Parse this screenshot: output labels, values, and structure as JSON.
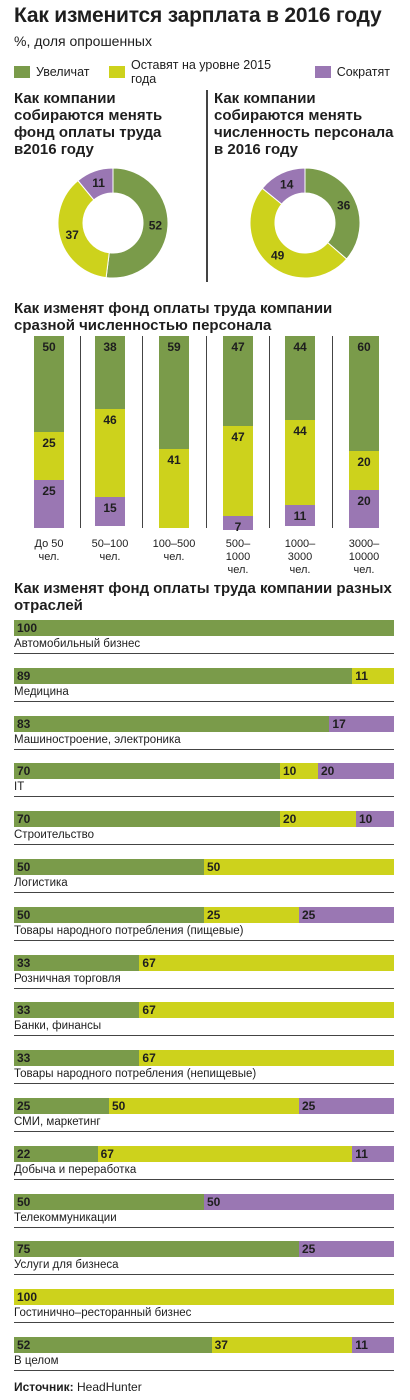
{
  "header": {
    "title": "Как изменится зарплата в 2016 году",
    "subtitle": "%, доля опрошенных"
  },
  "legend": [
    {
      "label": "Увеличат",
      "color": "#7a9b4a"
    },
    {
      "label": "Оставят на уровне 2015 года",
      "color": "#cdd21c"
    },
    {
      "label": "Сократят",
      "color": "#9a77b3"
    }
  ],
  "chart_data": [
    {
      "type": "pie",
      "title": "Как компании собираются менять фонд оплаты труда в2016 году",
      "title_lines": [
        "Как компании",
        "собираются менять",
        "фонд оплаты труда",
        "в2016 году"
      ],
      "categories": [
        "Увеличат",
        "Оставят на уровне 2015 года",
        "Сократят"
      ],
      "values": [
        52,
        37,
        11
      ],
      "colors": [
        "#7a9b4a",
        "#cdd21c",
        "#9a77b3"
      ]
    },
    {
      "type": "pie",
      "title": "Как компании собираются менять численность персонала в 2016 году",
      "title_lines": [
        "Как компании",
        "собираются менять",
        "численность персонала",
        "в 2016 году"
      ],
      "categories": [
        "Увеличат",
        "Оставят на уровне 2015 года",
        "Сократят"
      ],
      "values": [
        36,
        49,
        14
      ],
      "colors": [
        "#7a9b4a",
        "#cdd21c",
        "#9a77b3"
      ]
    },
    {
      "type": "bar",
      "stacked": true,
      "orientation": "vertical",
      "title": "Как изменят фонд оплаты труда компании сразной численностью персонала",
      "title_lines": [
        "Как изменят фонд оплаты труда компании",
        "сразной численностью персонала"
      ],
      "categories": [
        [
          "До 50",
          "чел."
        ],
        [
          "50–100",
          "чел."
        ],
        [
          "100–500",
          "чел."
        ],
        [
          "500–",
          "1000",
          "чел."
        ],
        [
          "1000–",
          "3000",
          "чел."
        ],
        [
          "3000–",
          "10000",
          "чел."
        ]
      ],
      "series": [
        {
          "name": "Увеличат",
          "values": [
            50,
            38,
            59,
            47,
            44,
            60
          ]
        },
        {
          "name": "Оставят на уровне 2015 года",
          "values": [
            25,
            46,
            41,
            47,
            44,
            20
          ]
        },
        {
          "name": "Сократят",
          "values": [
            25,
            15,
            0,
            7,
            11,
            20
          ]
        }
      ],
      "ylim": [
        0,
        100
      ]
    },
    {
      "type": "bar",
      "stacked": true,
      "orientation": "horizontal",
      "title": "Как изменят фонд оплаты труда компании разных отраслей",
      "title_lines": [
        "Как изменят фонд оплаты труда компании разных",
        "отраслей"
      ],
      "categories": [
        "Автомобильный бизнес",
        "Медицина",
        "Машиностроение, электроника",
        "IT",
        "Строительство",
        "Логистика",
        "Товары народного потребления (пищевые)",
        "Розничная торговля",
        "Банки, финансы",
        "Товары народного потребления (непищевые)",
        "СМИ, маркетинг",
        "Добыча и переработка",
        "Телекоммуникации",
        "Услуги для бизнеса",
        "Гостинично–ресторанный бизнес",
        "В целом"
      ],
      "series": [
        {
          "name": "Увеличат",
          "values": [
            100,
            89,
            83,
            70,
            70,
            50,
            50,
            33,
            33,
            33,
            25,
            22,
            50,
            75,
            0,
            52
          ]
        },
        {
          "name": "Оставят на уровне 2015 года",
          "values": [
            0,
            11,
            0,
            10,
            20,
            50,
            25,
            67,
            67,
            67,
            50,
            67,
            0,
            0,
            100,
            37
          ]
        },
        {
          "name": "Сократят",
          "values": [
            0,
            0,
            17,
            20,
            10,
            0,
            25,
            0,
            0,
            0,
            25,
            11,
            50,
            25,
            0,
            11
          ]
        }
      ],
      "xlim": [
        0,
        100
      ]
    }
  ],
  "source": {
    "label": "Источник:",
    "value": "HeadHunter"
  }
}
